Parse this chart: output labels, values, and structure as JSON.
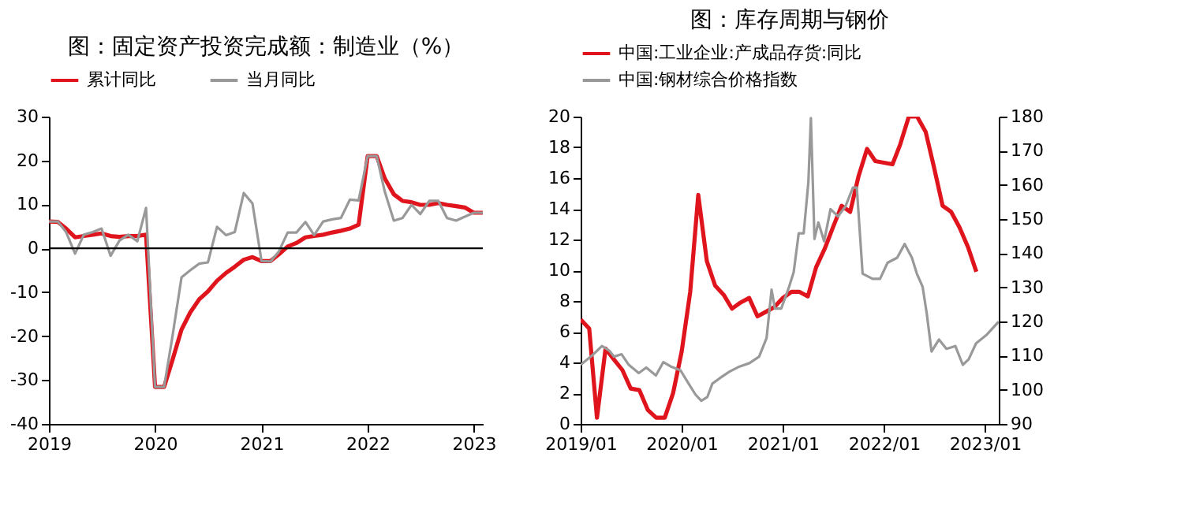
{
  "chart_data": [
    {
      "type": "line",
      "title": "图：固定资产投资完成额：制造业（%）",
      "legend": "top",
      "x": [
        "2019-01",
        "2019-02",
        "2019-03",
        "2019-04",
        "2019-05",
        "2019-06",
        "2019-07",
        "2019-08",
        "2019-09",
        "2019-10",
        "2019-11",
        "2019-12",
        "2020-01",
        "2020-02",
        "2020-03",
        "2020-04",
        "2020-05",
        "2020-06",
        "2020-07",
        "2020-08",
        "2020-09",
        "2020-10",
        "2020-11",
        "2020-12",
        "2021-01",
        "2021-02",
        "2021-03",
        "2021-04",
        "2021-05",
        "2021-06",
        "2021-07",
        "2021-08",
        "2021-09",
        "2021-10",
        "2021-11",
        "2021-12",
        "2022-01",
        "2022-02",
        "2022-03",
        "2022-04",
        "2022-05",
        "2022-06",
        "2022-07",
        "2022-08",
        "2022-09",
        "2022-10",
        "2022-11",
        "2022-12",
        "2023-01",
        "2023-02"
      ],
      "xlim": [
        "2019-01",
        "2023-02"
      ],
      "xticks": [
        {
          "value": "2019-01",
          "label": "2019"
        },
        {
          "value": "2020-01",
          "label": "2020"
        },
        {
          "value": "2021-01",
          "label": "2021"
        },
        {
          "value": "2022-01",
          "label": "2022"
        },
        {
          "value": "2023-01",
          "label": "2023"
        }
      ],
      "ylim": [
        -40,
        30
      ],
      "yticks": [
        -40,
        -30,
        -20,
        -10,
        0,
        10,
        20,
        30
      ],
      "ref_lines": [
        {
          "axis": "y",
          "value": 0,
          "color": "#000000"
        }
      ],
      "series": [
        {
          "name": "累计同比",
          "color": "#e0141c",
          "values": [
            6.1,
            6.0,
            4.5,
            2.5,
            2.8,
            3.1,
            3.4,
            2.8,
            2.6,
            2.8,
            2.8,
            3.1,
            -31.6,
            -31.6,
            -25.4,
            -18.5,
            -14.6,
            -11.6,
            -9.8,
            -7.4,
            -5.6,
            -4.2,
            -2.6,
            -2.0,
            -2.9,
            -2.9,
            -1.4,
            0.4,
            1.2,
            2.5,
            2.8,
            3.1,
            3.6,
            4.0,
            4.5,
            5.4,
            21,
            21,
            15.9,
            12.3,
            10.8,
            10.5,
            9.9,
            9.9,
            10.3,
            9.9,
            9.6,
            9.3,
            8.1,
            8.1
          ]
        },
        {
          "name": "当月同比",
          "color": "#999999",
          "values": [
            6.1,
            6.1,
            3.7,
            -1.2,
            3.1,
            3.7,
            4.5,
            -1.7,
            1.8,
            3.1,
            1.6,
            9.2,
            -31.6,
            -31.6,
            -20,
            -6.6,
            -5.0,
            -3.5,
            -3.2,
            4.9,
            3.0,
            3.7,
            12.6,
            10.2,
            -2.9,
            -3.0,
            -0.8,
            3.6,
            3.6,
            6.0,
            3.0,
            6.1,
            6.6,
            6.9,
            11.1,
            10.9,
            21,
            21,
            12.9,
            6.3,
            6.9,
            9.9,
            7.8,
            10.8,
            10.8,
            6.9,
            6.3,
            7.2,
            8.1,
            8.1
          ]
        }
      ]
    },
    {
      "type": "line",
      "title": "图：库存周期与钢价",
      "legend": "top",
      "x": [
        "2019-01",
        "2019-02",
        "2019-03",
        "2019-04",
        "2019-05",
        "2019-06",
        "2019-07",
        "2019-08",
        "2019-09",
        "2019-10",
        "2019-11",
        "2019-12",
        "2020-01",
        "2020-02",
        "2020-03",
        "2020-04",
        "2020-05",
        "2020-06",
        "2020-07",
        "2020-08",
        "2020-09",
        "2020-10",
        "2020-11",
        "2020-12",
        "2021-01",
        "2021-02",
        "2021-03",
        "2021-04",
        "2021-05",
        "2021-06",
        "2021-07",
        "2021-08",
        "2021-09",
        "2021-10",
        "2021-11",
        "2021-12",
        "2022-01",
        "2022-02",
        "2022-03",
        "2022-04",
        "2022-05",
        "2022-06",
        "2022-07",
        "2022-08",
        "2022-09",
        "2022-10",
        "2022-11",
        "2022-12"
      ],
      "xlim": [
        "2019-01-01",
        "2023-02-20"
      ],
      "xticks": [
        {
          "value": "2019-01-01",
          "label": "2019/01"
        },
        {
          "value": "2020-01-01",
          "label": "2020/01"
        },
        {
          "value": "2021-01-01",
          "label": "2021/01"
        },
        {
          "value": "2022-01-01",
          "label": "2022/01"
        },
        {
          "value": "2023-01-01",
          "label": "2023/01"
        }
      ],
      "ylim": [
        0,
        20
      ],
      "yticks": [
        0,
        2,
        4,
        6,
        8,
        10,
        12,
        14,
        16,
        18,
        20
      ],
      "y2lim": [
        90,
        180
      ],
      "y2ticks": [
        90,
        100,
        110,
        120,
        130,
        140,
        150,
        160,
        170,
        180
      ],
      "series": [
        {
          "name": "中国:工业企业:产成品存货:同比",
          "color": "#e0141c",
          "values": [
            6.8,
            6.2,
            0.4,
            4.9,
            4.2,
            3.5,
            2.3,
            2.2,
            0.9,
            0.4,
            0.4,
            2.0,
            4.7,
            8.6,
            14.9,
            10.6,
            9.0,
            8.4,
            7.5,
            7.9,
            8.2,
            7.0,
            7.3,
            7.6,
            8.2,
            8.6,
            8.6,
            8.3,
            10.2,
            11.4,
            12.8,
            14.2,
            13.8,
            16.1,
            17.9,
            17.1,
            17.0,
            16.9,
            18.2,
            20.0,
            20.0,
            19.0,
            16.7,
            14.2,
            13.8,
            12.8,
            11.5,
            9.9
          ]
        },
        {
          "name": "中国:钢材综合价格指数",
          "color": "#999999",
          "axis": "y2",
          "x": [
            "2019-01-01",
            "2019-02-11",
            "2019-03-19",
            "2019-04-14",
            "2019-05-02",
            "2019-05-29",
            "2019-06-24",
            "2019-07-30",
            "2019-08-26",
            "2019-09-30",
            "2019-10-27",
            "2019-11-23",
            "2019-12-28",
            "2020-01-24",
            "2020-02-20",
            "2020-03-12",
            "2020-04-03",
            "2020-04-21",
            "2020-05-18",
            "2020-06-22",
            "2020-07-28",
            "2020-09-02",
            "2020-10-07",
            "2020-11-03",
            "2020-11-21",
            "2020-12-03",
            "2020-12-26",
            "2021-01-23",
            "2021-02-09",
            "2021-02-27",
            "2021-03-17",
            "2021-04-03",
            "2021-04-12",
            "2021-04-25",
            "2021-05-09",
            "2021-05-30",
            "2021-06-22",
            "2021-07-19",
            "2021-08-15",
            "2021-09-11",
            "2021-09-25",
            "2021-10-16",
            "2021-11-21",
            "2021-12-18",
            "2022-01-14",
            "2022-02-18",
            "2022-03-17",
            "2022-04-12",
            "2022-04-30",
            "2022-05-21",
            "2022-06-05",
            "2022-06-22",
            "2022-07-19",
            "2022-08-15",
            "2022-09-16",
            "2022-10-13",
            "2022-11-03",
            "2022-11-30",
            "2023-01-06",
            "2023-02-19"
          ],
          "values": [
            107.3,
            110.0,
            112.8,
            111.5,
            109.7,
            110.4,
            107.3,
            104.9,
            106.5,
            104.2,
            108.1,
            106.8,
            105.7,
            102.1,
            98.6,
            96.8,
            97.9,
            101.8,
            103.4,
            105.3,
            106.8,
            107.8,
            109.7,
            115.2,
            129.3,
            123.8,
            123.8,
            130.1,
            134.5,
            145.8,
            145.8,
            160.8,
            179.6,
            144.2,
            149.0,
            143.5,
            152.9,
            150.8,
            153.7,
            159.2,
            159.2,
            134.0,
            132.5,
            132.5,
            137.2,
            138.7,
            142.7,
            138.7,
            134.0,
            130.1,
            122.2,
            111.2,
            114.7,
            112.0,
            112.8,
            107.3,
            108.9,
            113.6,
            116.0,
            119.9
          ]
        }
      ]
    }
  ]
}
